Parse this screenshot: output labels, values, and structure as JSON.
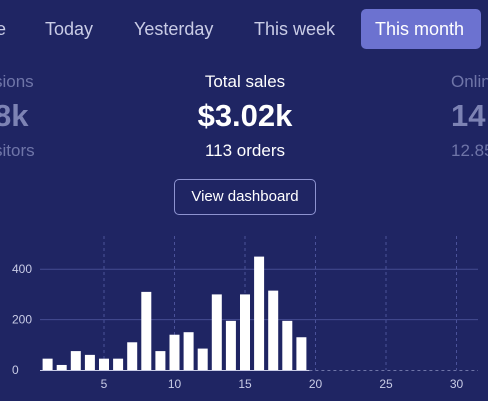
{
  "tabs": [
    {
      "label": "e"
    },
    {
      "label": "Today"
    },
    {
      "label": "Yesterday"
    },
    {
      "label": "This week"
    },
    {
      "label": "This month",
      "active": true
    }
  ],
  "stats": {
    "left": {
      "label": "sions",
      "value": "8k",
      "sub": "sitors"
    },
    "center": {
      "label": "Total sales",
      "value": "$3.02k",
      "sub": "113 orders"
    },
    "right": {
      "label": "Onlin",
      "value": "14",
      "sub": "12.85"
    }
  },
  "dashboard_button": "View dashboard",
  "colors": {
    "background": "#1f2563",
    "active_tab": "#6c72d0",
    "bar": "#ffffff"
  },
  "chart_data": {
    "type": "bar",
    "x": [
      1,
      2,
      3,
      4,
      5,
      6,
      7,
      8,
      9,
      10,
      11,
      12,
      13,
      14,
      15,
      16,
      17,
      18,
      19
    ],
    "values": [
      45,
      20,
      75,
      60,
      45,
      45,
      110,
      310,
      75,
      140,
      150,
      85,
      300,
      195,
      300,
      450,
      315,
      195,
      130
    ],
    "xticks": [
      5,
      10,
      15,
      20,
      25,
      30
    ],
    "yticks": [
      0,
      200,
      400
    ],
    "xlim": [
      0,
      31
    ],
    "ylim": [
      0,
      500
    ]
  }
}
